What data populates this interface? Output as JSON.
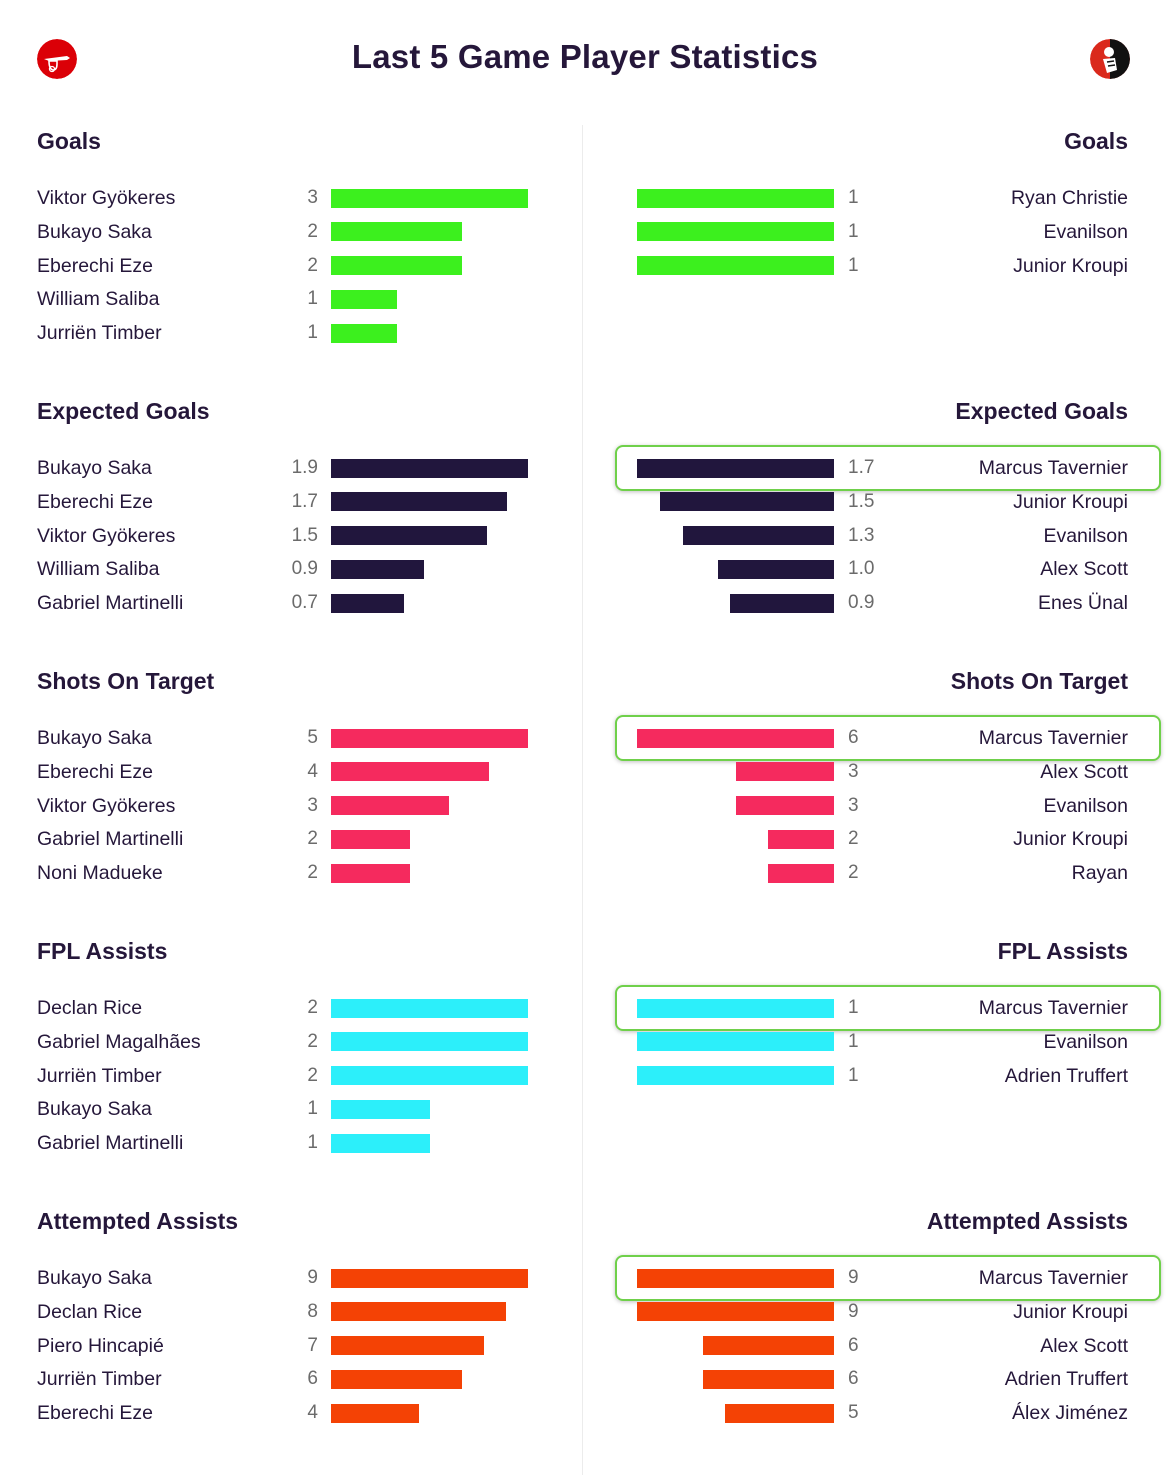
{
  "header": {
    "title": "Last 5 Game Player Statistics",
    "left_logo": "arsenal-crest",
    "right_logo": "bournemouth-crest"
  },
  "chart_data": {
    "type": "bar",
    "title": "Last 5 Game Player Statistics",
    "orientation": "horizontal",
    "sections": [
      {
        "title": "Goals",
        "color": "#3cf01e",
        "left": [
          {
            "name": "Viktor Gyökeres",
            "value": 3
          },
          {
            "name": "Bukayo Saka",
            "value": 2
          },
          {
            "name": "Eberechi Eze",
            "value": 2
          },
          {
            "name": "William Saliba",
            "value": 1
          },
          {
            "name": "Jurriën Timber",
            "value": 1
          }
        ],
        "right": [
          {
            "name": "Ryan Christie",
            "value": 1
          },
          {
            "name": "Evanilson",
            "value": 1
          },
          {
            "name": "Junior Kroupi",
            "value": 1
          }
        ]
      },
      {
        "title": "Expected Goals",
        "color": "#21163d",
        "left": [
          {
            "name": "Bukayo Saka",
            "value": "1.9"
          },
          {
            "name": "Eberechi Eze",
            "value": "1.7"
          },
          {
            "name": "Viktor Gyökeres",
            "value": "1.5"
          },
          {
            "name": "William Saliba",
            "value": "0.9"
          },
          {
            "name": "Gabriel Martinelli",
            "value": "0.7"
          }
        ],
        "right": [
          {
            "name": "Marcus Tavernier",
            "value": "1.7",
            "highlight": true
          },
          {
            "name": "Junior Kroupi",
            "value": "1.5"
          },
          {
            "name": "Evanilson",
            "value": "1.3"
          },
          {
            "name": "Alex Scott",
            "value": "1.0"
          },
          {
            "name": "Enes Ünal",
            "value": "0.9"
          }
        ]
      },
      {
        "title": "Shots On Target",
        "color": "#f52a5e",
        "left": [
          {
            "name": "Bukayo Saka",
            "value": 5
          },
          {
            "name": "Eberechi Eze",
            "value": 4
          },
          {
            "name": "Viktor Gyökeres",
            "value": 3
          },
          {
            "name": "Gabriel Martinelli",
            "value": 2
          },
          {
            "name": "Noni Madueke",
            "value": 2
          }
        ],
        "right": [
          {
            "name": "Marcus Tavernier",
            "value": 6,
            "highlight": true
          },
          {
            "name": "Alex Scott",
            "value": 3
          },
          {
            "name": "Evanilson",
            "value": 3
          },
          {
            "name": "Junior Kroupi",
            "value": 2
          },
          {
            "name": "Rayan",
            "value": 2
          }
        ]
      },
      {
        "title": "FPL Assists",
        "color": "#2ceffa",
        "left": [
          {
            "name": "Declan Rice",
            "value": 2
          },
          {
            "name": "Gabriel Magalhães",
            "value": 2
          },
          {
            "name": "Jurriën Timber",
            "value": 2
          },
          {
            "name": "Bukayo Saka",
            "value": 1
          },
          {
            "name": "Gabriel Martinelli",
            "value": 1
          }
        ],
        "right": [
          {
            "name": "Marcus Tavernier",
            "value": 1,
            "highlight": true
          },
          {
            "name": "Evanilson",
            "value": 1
          },
          {
            "name": "Adrien Truffert",
            "value": 1
          }
        ]
      },
      {
        "title": "Attempted Assists",
        "color": "#f44205",
        "left": [
          {
            "name": "Bukayo Saka",
            "value": 9
          },
          {
            "name": "Declan Rice",
            "value": 8
          },
          {
            "name": "Piero Hincapié",
            "value": 7
          },
          {
            "name": "Jurriën Timber",
            "value": 6
          },
          {
            "name": "Eberechi Eze",
            "value": 4
          }
        ],
        "right": [
          {
            "name": "Marcus Tavernier",
            "value": 9,
            "highlight": true
          },
          {
            "name": "Junior Kroupi",
            "value": 9
          },
          {
            "name": "Alex Scott",
            "value": 6
          },
          {
            "name": "Adrien Truffert",
            "value": 6
          },
          {
            "name": "Álex Jiménez",
            "value": 5
          }
        ]
      }
    ],
    "highlight_color": "#6fd04a"
  }
}
